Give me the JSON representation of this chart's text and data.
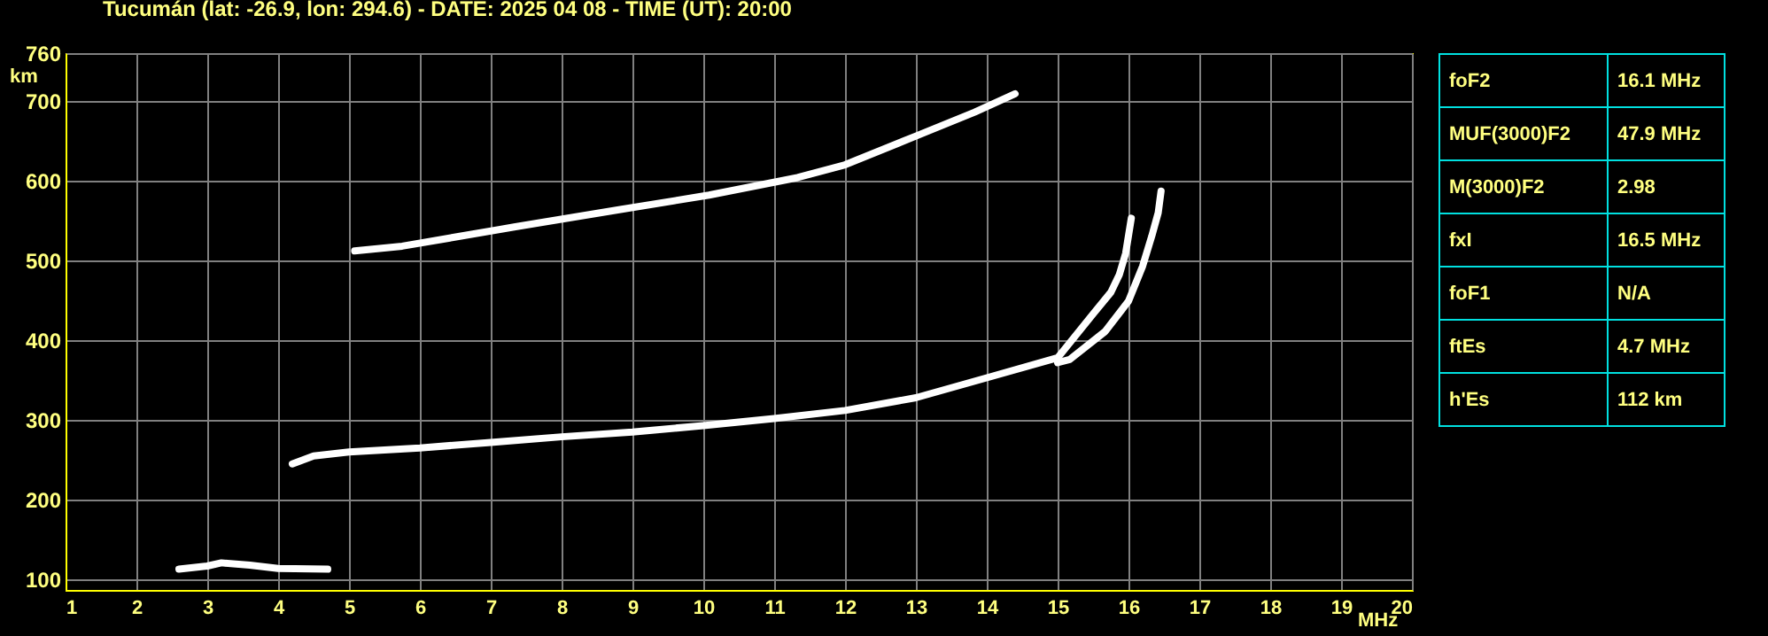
{
  "chart_data": [
    {
      "type": "line",
      "title": "Tucumán (lat: -26.9, lon: 294.6) - DATE: 2025 04 08 - TIME (UT): 20:00",
      "xlabel": "MHz",
      "ylabel": "km",
      "xlim": [
        1,
        20
      ],
      "ylim": [
        87,
        760
      ],
      "xticks": [
        1,
        2,
        3,
        4,
        5,
        6,
        7,
        8,
        9,
        10,
        11,
        12,
        13,
        14,
        15,
        16,
        17,
        18,
        19,
        20
      ],
      "yticks": [
        100,
        200,
        300,
        400,
        500,
        600,
        700,
        760
      ],
      "grid": true,
      "series": [
        {
          "color": "#ffffff",
          "x": [
            2.6,
            3.0,
            3.2,
            3.6,
            4.0,
            4.7
          ],
          "values": [
            113,
            117,
            121,
            118,
            114,
            113
          ]
        },
        {
          "color": "#ffffff",
          "x": [
            4.2,
            4.5,
            5,
            6,
            7,
            8,
            9,
            10,
            11,
            12,
            13,
            14,
            15,
            15.5,
            15.75,
            15.87,
            15.96,
            16.04
          ],
          "values": [
            245,
            255,
            260,
            265,
            272,
            279,
            285,
            293,
            302,
            312,
            328,
            353,
            378,
            433,
            460,
            482,
            509,
            553
          ]
        },
        {
          "color": "#ffffff",
          "x": [
            15.0,
            15.17,
            15.67,
            16.0,
            16.2,
            16.33,
            16.42,
            16.46
          ],
          "values": [
            372,
            376,
            411,
            449,
            493,
            531,
            560,
            587
          ]
        },
        {
          "color": "#ffffff",
          "x": [
            5.08,
            5.75,
            7.33,
            8.83,
            10.08,
            11.33,
            12.0,
            13.0,
            13.83,
            14.4
          ],
          "values": [
            512,
            518,
            542,
            564,
            582,
            604,
            620,
            656,
            686,
            709
          ]
        }
      ]
    },
    {
      "type": "other",
      "annotations": [
        "foF2",
        "16.1 MHz",
        "MUF(3000)F2",
        "47.9 MHz",
        "M(3000)F2",
        "2.98",
        "fxI",
        "16.5 MHz",
        "foF1",
        "N/A",
        "ftEs",
        "4.7 MHz",
        "h'Es",
        "112 km"
      ]
    }
  ]
}
